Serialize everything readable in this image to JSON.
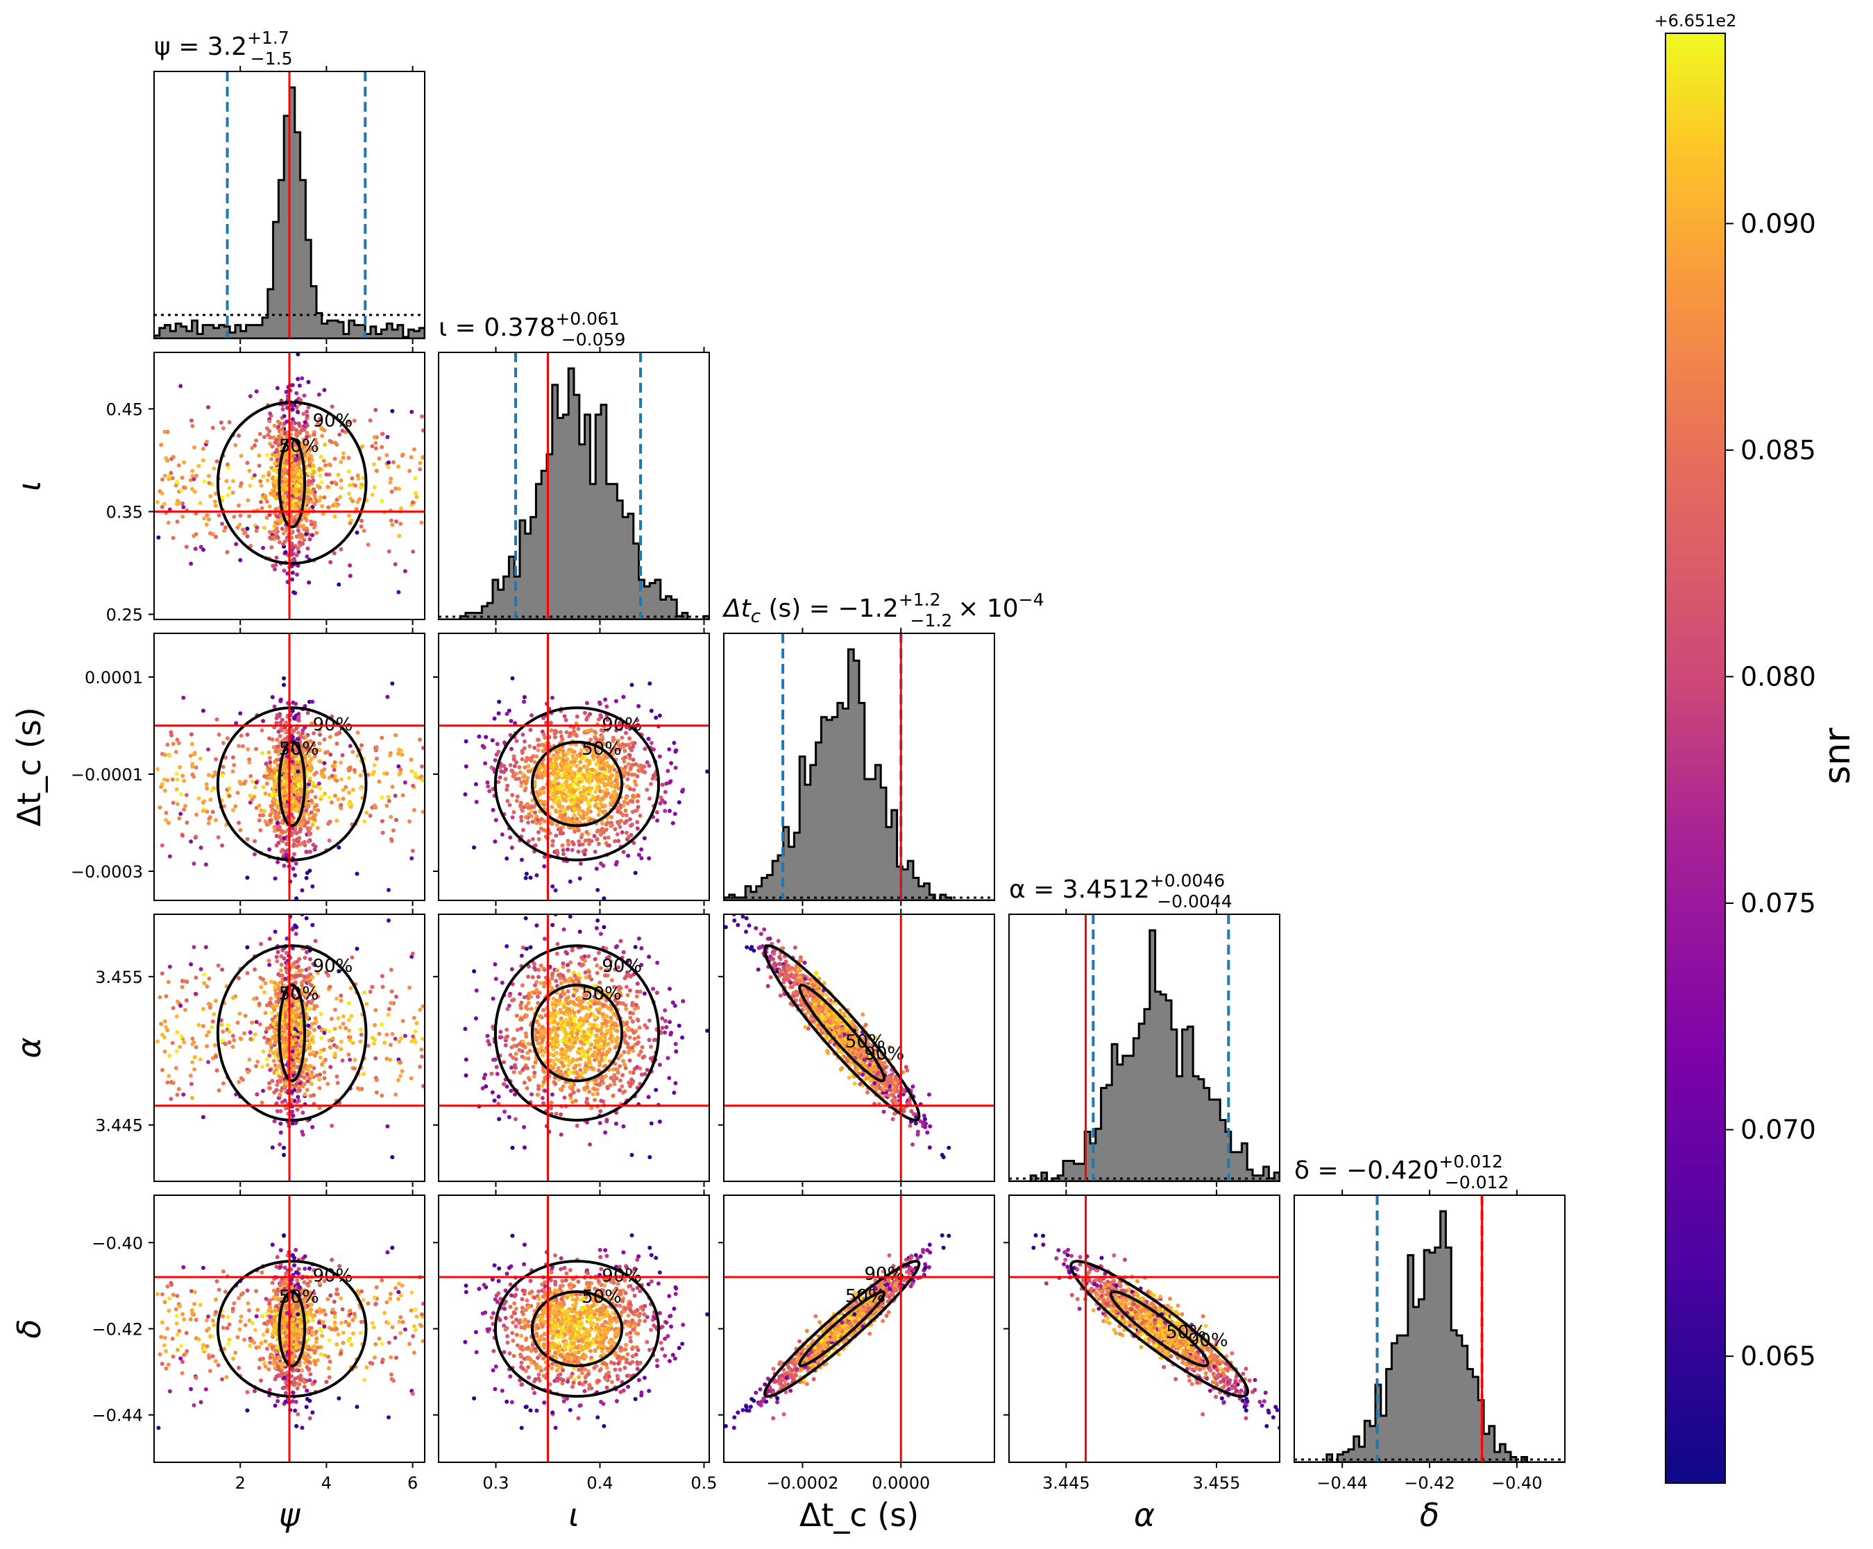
{
  "chart_data": {
    "type": "scatter",
    "title": "",
    "colors": {
      "hist_fill": "#808080",
      "injection_line": "#ff0000",
      "credible_line": "#1f77b4",
      "contour": "#000000",
      "colormap_low": "#0d0887",
      "colormap_mid": "#cc4778",
      "colormap_high": "#f0f921"
    },
    "parameters": [
      {
        "key": "psi",
        "label": "ψ",
        "range": [
          0,
          6.28
        ],
        "ticks": [
          2,
          4,
          6
        ],
        "tick_labels": [
          "2",
          "4",
          "6"
        ],
        "injection": 3.14,
        "median": 3.2,
        "lo": 1.7,
        "hi": 4.9,
        "stat_label": "ψ = 3.2",
        "stat_sup": "+1.7",
        "stat_sub": "−1.5"
      },
      {
        "key": "iota",
        "label": "ι",
        "range": [
          0.245,
          0.505
        ],
        "ticks": [
          0.3,
          0.4,
          0.5
        ],
        "tick_labels": [
          "0.3",
          "0.4",
          "0.5"
        ],
        "y_ticks": [
          0.25,
          0.35,
          0.45
        ],
        "y_tick_labels": [
          "0.25",
          "0.35",
          "0.45"
        ],
        "injection": 0.35,
        "median": 0.378,
        "lo": 0.319,
        "hi": 0.439,
        "stat_label": "ι = 0.378",
        "stat_sup": "+0.061",
        "stat_sub": "−0.059"
      },
      {
        "key": "dtc",
        "label": "Δt_c (s)",
        "range": [
          -0.00036,
          0.00019
        ],
        "ticks": [
          -0.0002,
          0.0
        ],
        "tick_labels": [
          "−0.0002",
          "0.0000"
        ],
        "y_ticks": [
          0.0001,
          -0.0001,
          -0.0003
        ],
        "y_tick_labels": [
          "0.0001",
          "−0.0001",
          "−0.0003"
        ],
        "injection": 0.0,
        "median": -0.00012,
        "lo": -0.00024,
        "hi": 0.0,
        "stat_label": "Δt",
        "stat_sub_c": "c",
        "stat_unit": " (s) = −1.2",
        "stat_sup": "+1.2",
        "stat_sub": "−1.2",
        "stat_tail": "× 10",
        "stat_exp": "−4"
      },
      {
        "key": "alpha",
        "label": "α",
        "range": [
          3.4412,
          3.4592
        ],
        "ticks": [
          3.445,
          3.455
        ],
        "tick_labels": [
          "3.445",
          "3.455"
        ],
        "y_ticks": [
          3.455,
          3.445
        ],
        "y_tick_labels": [
          "3.455",
          "3.445"
        ],
        "injection": 3.4463,
        "median": 3.4512,
        "lo": 3.4468,
        "hi": 3.4558,
        "stat_label": "α = 3.4512",
        "stat_sup": "+0.0046",
        "stat_sub": "−0.0044"
      },
      {
        "key": "delta",
        "label": "δ",
        "range": [
          -0.451,
          -0.389
        ],
        "ticks": [
          -0.44,
          -0.42,
          -0.4
        ],
        "tick_labels": [
          "−0.44",
          "−0.42",
          "−0.40"
        ],
        "y_ticks": [
          -0.4,
          -0.42,
          -0.44
        ],
        "y_tick_labels": [
          "−0.40",
          "−0.42",
          "−0.44"
        ],
        "injection": -0.408,
        "median": -0.42,
        "lo": -0.432,
        "hi": -0.408,
        "stat_label": "δ = −0.420",
        "stat_sup": "+0.012",
        "stat_sub": "−0.012"
      }
    ],
    "contour_labels": [
      "50%",
      "90%"
    ],
    "colorbar": {
      "label": "snr",
      "offset_label": "+6.651e2",
      "range": [
        0.0622,
        0.0942
      ],
      "ticks": [
        0.065,
        0.07,
        0.075,
        0.08,
        0.085,
        0.09
      ],
      "tick_labels": [
        "0.065",
        "0.070",
        "0.075",
        "0.080",
        "0.085",
        "0.090"
      ]
    }
  }
}
